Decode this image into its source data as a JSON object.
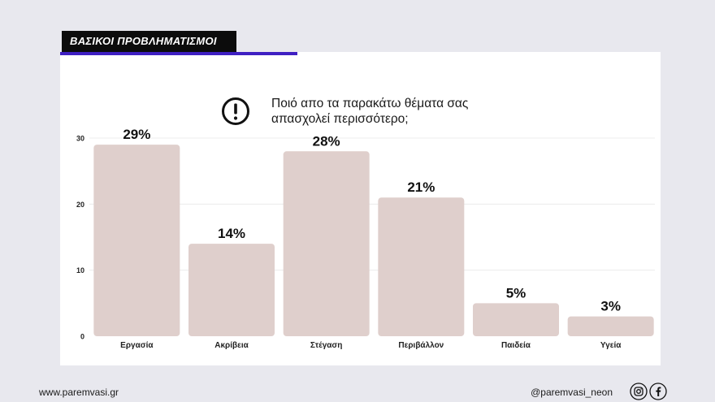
{
  "header": {
    "section_label": "ΒΑΣΙΚΟΙ ΠΡΟΒΛΗΜΑΤΙΣΜΟΙ"
  },
  "question": {
    "text": "Ποιό απο τα παρακάτω θέματα σας απασχολεί περισσότερο;",
    "icon": "exclamation-circle-icon"
  },
  "chart_data": {
    "type": "bar",
    "categories": [
      "Εργασία",
      "Ακρίβεια",
      "Στέγαση",
      "Περιβάλλον",
      "Παιδεία",
      "Υγεία"
    ],
    "values": [
      29,
      14,
      28,
      21,
      5,
      3
    ],
    "data_labels": [
      "29%",
      "14%",
      "28%",
      "21%",
      "5%",
      "3%"
    ],
    "yticks": [
      0,
      10,
      20,
      30
    ],
    "ylim": [
      0,
      30
    ],
    "grid": true,
    "bar_color": "#dfcfcc"
  },
  "footer": {
    "website": "www.paremvasi.gr",
    "handle": "@paremvasi_neon",
    "social_icons": [
      "instagram-icon",
      "facebook-icon"
    ]
  },
  "colors": {
    "accent": "#3f1fc2",
    "label_bg": "#0c0c0c",
    "page_bg": "#e8e8ee"
  }
}
